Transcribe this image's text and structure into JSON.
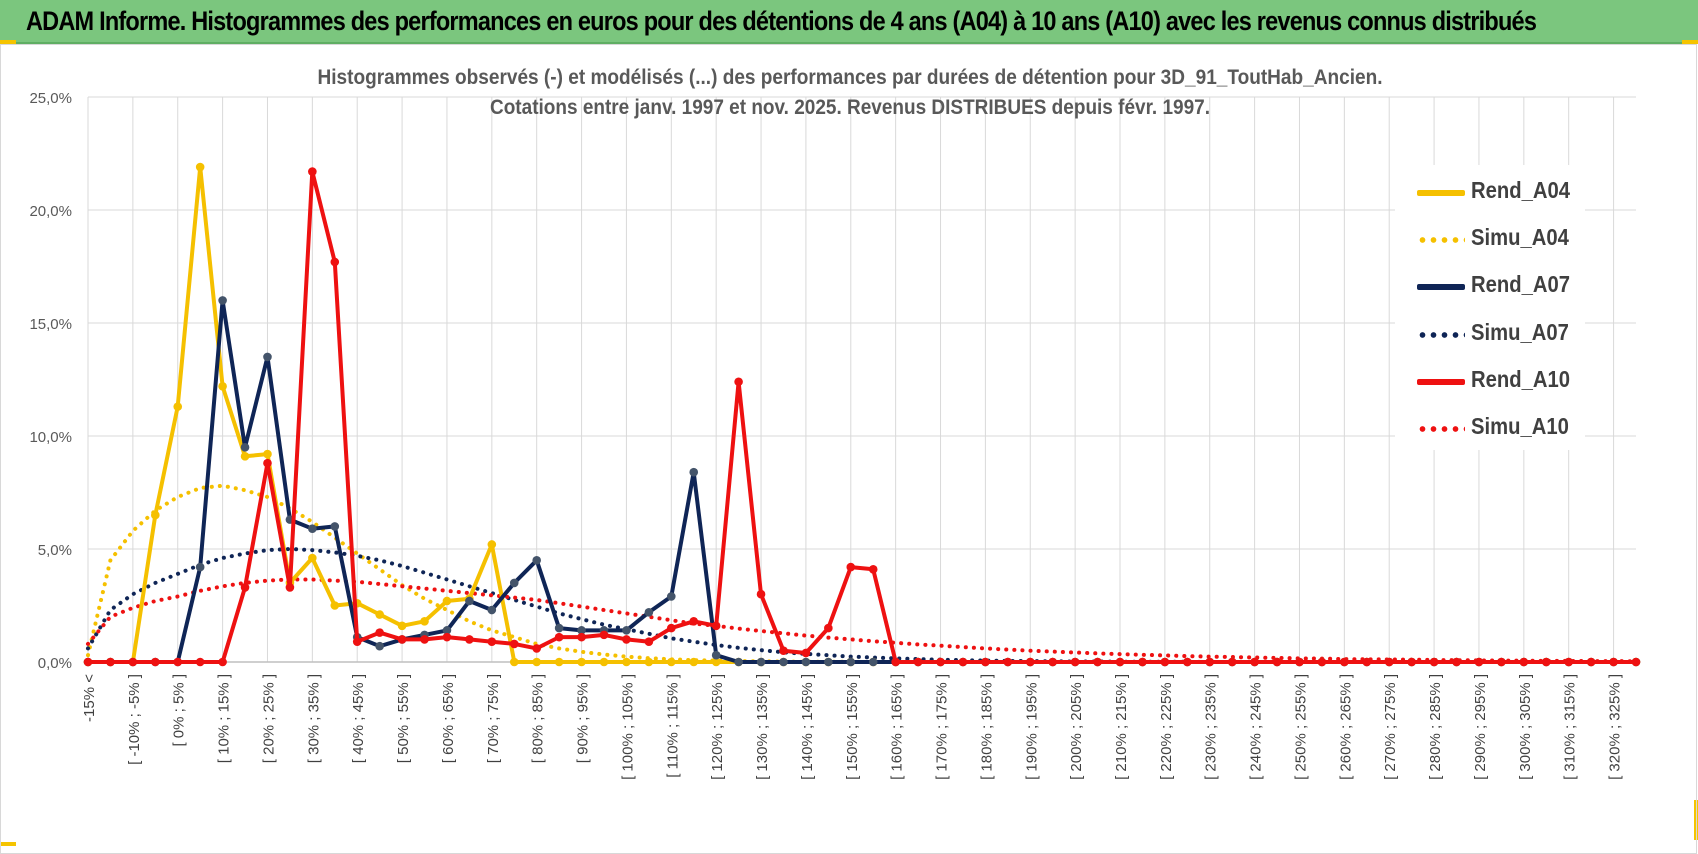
{
  "header": {
    "title": "ADAM Informe. Histogrammes des performances en euros pour des détentions de 4 ans (A04) à 10 ans (A10) avec les revenus connus distribués"
  },
  "chart_data": {
    "type": "line",
    "title": "Histogrammes observés (-) et modélisés (...) des performances par durées de détention pour 3D_91_ToutHab_Ancien.",
    "subtitle": "Cotations entre janv. 1997 et nov. 2025. Revenus DISTRIBUES depuis févr. 1997.",
    "xlabel": "",
    "ylabel": "",
    "ylim": [
      0,
      25
    ],
    "yticks": [
      "0,0%",
      "5,0%",
      "10,0%",
      "15,0%",
      "20,0%",
      "25,0%"
    ],
    "grid": true,
    "legend_position": "right",
    "categories": [
      "-15% <",
      "[ -15% ; -10% ]",
      "[ -10% ; -5% ]",
      "[ -5% ; 0% ]",
      "[ 0% ; 5% ]",
      "[ 5% ; 10% ]",
      "[ 10% ; 15% ]",
      "[ 15% ; 20% ]",
      "[ 20% ; 25% ]",
      "[ 25% ; 30% ]",
      "[ 30% ; 35% ]",
      "[ 35% ; 40% ]",
      "[ 40% ; 45% ]",
      "[ 45% ; 50% ]",
      "[ 50% ; 55% ]",
      "[ 55% ; 60% ]",
      "[ 60% ; 65% ]",
      "[ 65% ; 70% ]",
      "[ 70% ; 75% ]",
      "[ 75% ; 80% ]",
      "[ 80% ; 85% ]",
      "[ 85% ; 90% ]",
      "[ 90% ; 95% ]",
      "[ 95% ; 100% ]",
      "[ 100% ; 105% ]",
      "[ 105% ; 110% ]",
      "[ 110% ; 115% ]",
      "[ 115% ; 120% ]",
      "[ 120% ; 125% ]",
      "[ 125% ; 130% ]",
      "[ 130% ; 135% ]",
      "[ 135% ; 140% ]",
      "[ 140% ; 145% ]",
      "[ 145% ; 150% ]",
      "[ 150% ; 155% ]",
      "[ 155% ; 160% ]",
      "[ 160% ; 165% ]",
      "[ 165% ; 170% ]",
      "[ 170% ; 175% ]",
      "[ 175% ; 180% ]",
      "[ 180% ; 185% ]",
      "[ 185% ; 190% ]",
      "[ 190% ; 195% ]",
      "[ 195% ; 200% ]",
      "[ 200% ; 205% ]",
      "[ 205% ; 210% ]",
      "[ 210% ; 215% ]",
      "[ 215% ; 220% ]",
      "[ 220% ; 225% ]",
      "[ 225% ; 230% ]",
      "[ 230% ; 235% ]",
      "[ 235% ; 240% ]",
      "[ 240% ; 245% ]",
      "[ 245% ; 250% ]",
      "[ 250% ; 255% ]",
      "[ 255% ; 260% ]",
      "[ 260% ; 265% ]",
      "[ 265% ; 270% ]",
      "[ 270% ; 275% ]",
      "[ 275% ; 280% ]",
      "[ 280% ; 285% ]",
      "[ 285% ; 290% ]",
      "[ 290% ; 295% ]",
      "[ 295% ; 300% ]",
      "[ 300% ; 305% ]",
      "[ 305% ; 310% ]",
      "[ 310% ; 315% ]",
      "[ 315% ; 320% ]",
      "[ 320% ; 325% ]",
      "[ 325% ; 330% ]"
    ],
    "shown_tick_labels": [
      "-15% <",
      "[ -10% ; -5% ]",
      "[ 0% ; 5% ]",
      "[ 10% ; 15% ]",
      "[ 20% ; 25% ]",
      "[ 30% ; 35% ]",
      "[ 40% ; 45% ]",
      "[ 50% ; 55% ]",
      "[ 60% ; 65% ]",
      "[ 70% ; 75% ]",
      "[ 80% ; 85% ]",
      "[ 90% ; 95% ]",
      "[ 100% ; 105% ]",
      "[ 110% ; 115% ]",
      "[ 120% ; 125% ]",
      "[ 130% ; 135% ]",
      "[ 140% ; 145% ]",
      "[ 150% ; 155% ]",
      "[ 160% ; 165% ]",
      "[ 170% ; 175% ]",
      "[ 180% ; 185% ]",
      "[ 190% ; 195% ]",
      "[ 200% ; 205% ]",
      "[ 210% ; 215% ]",
      "[ 220% ; 225% ]",
      "[ 230% ; 235% ]",
      "[ 240% ; 245% ]",
      "[ 250% ; 255% ]",
      "[ 260% ; 265% ]",
      "[ 270% ; 275% ]",
      "[ 280% ; 285% ]",
      "[ 290% ; 295% ]",
      "[ 300% ; 305% ]",
      "[ 310% ; 315% ]",
      "[ 320% ; 325% ]"
    ],
    "series": [
      {
        "name": "Rend_A04",
        "color": "#f5c000",
        "style": "solid",
        "markers": true,
        "values": [
          0,
          0,
          0,
          6.5,
          11.3,
          21.9,
          12.2,
          9.1,
          9.2,
          3.5,
          4.6,
          2.5,
          2.6,
          2.1,
          1.6,
          1.8,
          2.7,
          2.8,
          5.2,
          0,
          0,
          0,
          0,
          0,
          0,
          0,
          0,
          0,
          0,
          0,
          0,
          0,
          0,
          0,
          0,
          0,
          0,
          0,
          0,
          0,
          0,
          0,
          0,
          0,
          0,
          0,
          0,
          0,
          0,
          0,
          0,
          0,
          0,
          0,
          0,
          0,
          0,
          0,
          0,
          0,
          0,
          0,
          0,
          0,
          0,
          0,
          0,
          0,
          0,
          0
        ]
      },
      {
        "name": "Simu_A04",
        "color": "#f5c000",
        "style": "dotted",
        "markers": false,
        "values": [
          0.3,
          4.5,
          5.8,
          6.7,
          7.3,
          7.7,
          7.8,
          7.6,
          7.3,
          6.8,
          6.2,
          5.5,
          4.8,
          4.1,
          3.4,
          2.8,
          2.3,
          1.8,
          1.4,
          1.1,
          0.8,
          0.6,
          0.45,
          0.33,
          0.24,
          0.17,
          0.12,
          0.08,
          0.06,
          0.04,
          0.03,
          0.02,
          0.01,
          0.01,
          0.01,
          0,
          0,
          0,
          0,
          0,
          0,
          0,
          0,
          0,
          0,
          0,
          0,
          0,
          0,
          0,
          0,
          0,
          0,
          0,
          0,
          0,
          0,
          0,
          0,
          0,
          0,
          0,
          0,
          0,
          0,
          0,
          0,
          0,
          0,
          0
        ]
      },
      {
        "name": "Rend_A07",
        "color": "#0f2556",
        "style": "solid",
        "markers": true,
        "values": [
          0,
          0,
          0,
          0,
          0,
          4.2,
          16.0,
          9.5,
          13.5,
          6.3,
          5.9,
          6.0,
          1.1,
          0.7,
          1.0,
          1.2,
          1.4,
          2.7,
          2.3,
          3.5,
          4.5,
          1.5,
          1.4,
          1.4,
          1.4,
          2.2,
          2.9,
          8.4,
          0.3,
          0,
          0,
          0,
          0,
          0,
          0,
          0,
          0,
          0,
          0,
          0,
          0,
          0,
          0,
          0,
          0,
          0,
          0,
          0,
          0,
          0,
          0,
          0,
          0,
          0,
          0,
          0,
          0,
          0,
          0,
          0,
          0,
          0,
          0,
          0,
          0,
          0,
          0,
          0,
          0,
          0
        ]
      },
      {
        "name": "Simu_A07",
        "color": "#0f2556",
        "style": "dotted",
        "markers": false,
        "values": [
          0.6,
          2.3,
          3.0,
          3.5,
          3.9,
          4.3,
          4.6,
          4.8,
          4.95,
          5.0,
          4.95,
          4.85,
          4.7,
          4.5,
          4.25,
          3.95,
          3.65,
          3.35,
          3.05,
          2.75,
          2.45,
          2.15,
          1.9,
          1.65,
          1.45,
          1.25,
          1.05,
          0.9,
          0.75,
          0.63,
          0.52,
          0.43,
          0.36,
          0.3,
          0.24,
          0.2,
          0.16,
          0.13,
          0.1,
          0.08,
          0.06,
          0.05,
          0.04,
          0.03,
          0.02,
          0.02,
          0.01,
          0.01,
          0.01,
          0.01,
          0,
          0,
          0,
          0,
          0,
          0,
          0,
          0,
          0,
          0,
          0,
          0,
          0,
          0,
          0,
          0,
          0,
          0,
          0,
          0
        ]
      },
      {
        "name": "Rend_A10",
        "color": "#ee1111",
        "style": "solid",
        "markers": true,
        "values": [
          0,
          0,
          0,
          0,
          0,
          0,
          0,
          3.3,
          8.8,
          3.3,
          21.7,
          17.7,
          0.9,
          1.3,
          1.0,
          1.0,
          1.1,
          1.0,
          0.9,
          0.8,
          0.6,
          1.1,
          1.1,
          1.2,
          1.0,
          0.9,
          1.5,
          1.8,
          1.6,
          12.4,
          3.0,
          0.5,
          0.4,
          1.5,
          4.2,
          4.1,
          0,
          0,
          0,
          0,
          0,
          0,
          0,
          0,
          0,
          0,
          0,
          0,
          0,
          0,
          0,
          0,
          0,
          0,
          0,
          0,
          0,
          0,
          0,
          0,
          0,
          0,
          0,
          0,
          0,
          0,
          0,
          0,
          0,
          0
        ]
      },
      {
        "name": "Simu_A10",
        "color": "#ee1111",
        "style": "dotted",
        "markers": false,
        "values": [
          0.8,
          2.0,
          2.4,
          2.7,
          2.9,
          3.15,
          3.35,
          3.5,
          3.6,
          3.65,
          3.65,
          3.6,
          3.55,
          3.45,
          3.35,
          3.25,
          3.15,
          3.05,
          2.95,
          2.85,
          2.75,
          2.6,
          2.45,
          2.3,
          2.15,
          2.0,
          1.85,
          1.7,
          1.6,
          1.48,
          1.37,
          1.27,
          1.17,
          1.08,
          1.0,
          0.92,
          0.85,
          0.78,
          0.72,
          0.66,
          0.6,
          0.55,
          0.5,
          0.46,
          0.42,
          0.38,
          0.35,
          0.32,
          0.29,
          0.26,
          0.24,
          0.22,
          0.2,
          0.18,
          0.16,
          0.15,
          0.13,
          0.12,
          0.11,
          0.1,
          0.09,
          0.08,
          0.07,
          0.06,
          0.06,
          0.05,
          0.05,
          0.04,
          0.04,
          0.03
        ]
      }
    ]
  }
}
